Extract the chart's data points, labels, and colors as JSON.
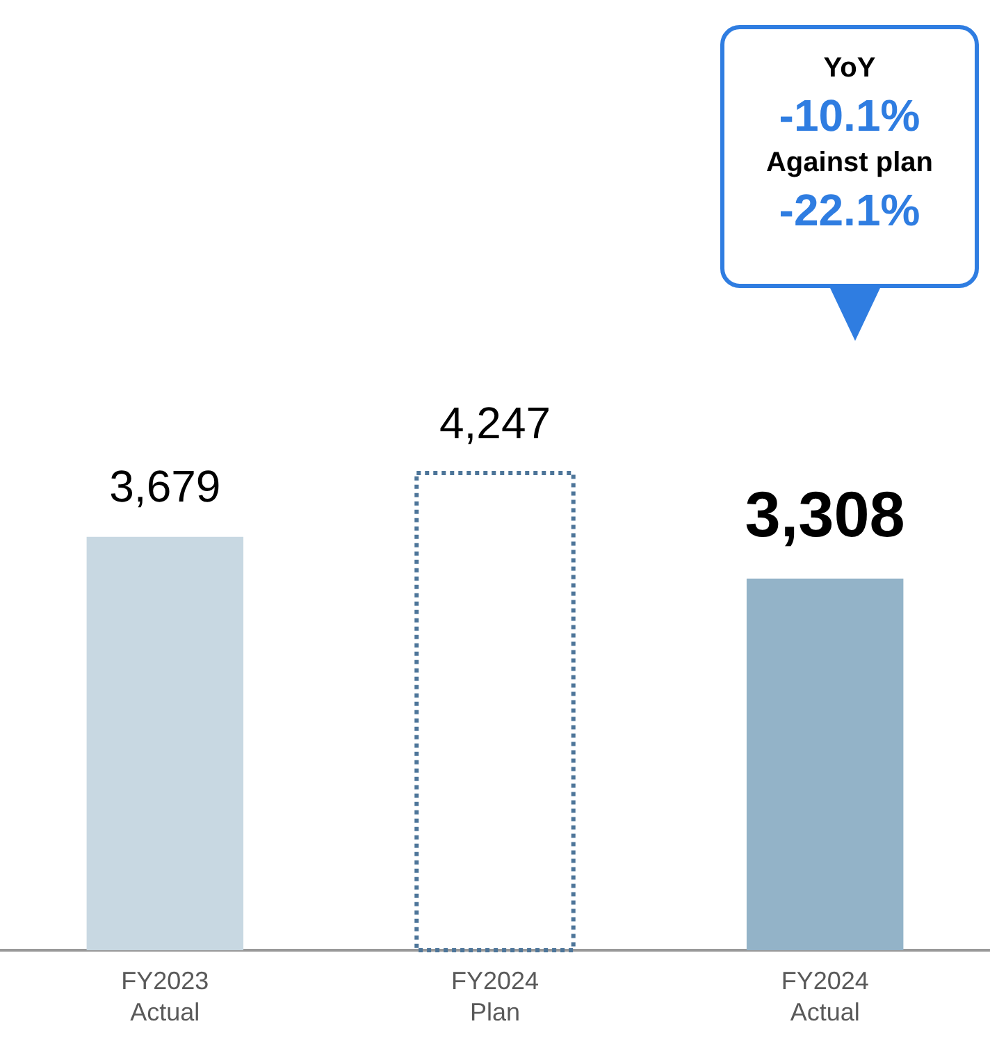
{
  "chart_data": {
    "type": "bar",
    "categories": [
      "FY2023 Actual",
      "FY2024 Plan",
      "FY2024 Actual"
    ],
    "series": [
      {
        "colors": [
          "#c8d8e2",
          null,
          "#93b3c8"
        ],
        "values": [
          3679,
          null,
          3308
        ],
        "value_labels": [
          "3,679",
          null,
          "3,308"
        ]
      },
      {
        "color": "#4d7599",
        "line_style": "dotted",
        "values": [
          null,
          4247,
          null
        ],
        "value_labels": [
          null,
          "4,247",
          null
        ]
      }
    ],
    "legend": false,
    "grid": false,
    "tick_labels": "x",
    "annotations": [
      "YoY",
      "-10.1%",
      "Against plan",
      "-22.1%"
    ]
  }
}
